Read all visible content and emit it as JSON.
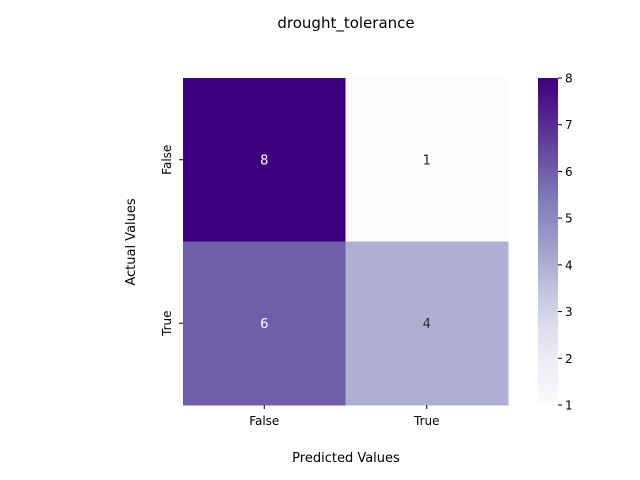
{
  "chart_data": {
    "type": "heatmap",
    "title": "drought_tolerance",
    "xlabel": "Predicted Values",
    "ylabel": "Actual Values",
    "x_categories": [
      "False",
      "True"
    ],
    "y_categories": [
      "False",
      "True"
    ],
    "values": [
      [
        8,
        1
      ],
      [
        6,
        4
      ]
    ],
    "colorbar": {
      "min": 1,
      "max": 8,
      "ticks": [
        1,
        2,
        3,
        4,
        5,
        6,
        7,
        8
      ]
    },
    "colormap": [
      "#fcfbfd",
      "#efedf5",
      "#dadaeb",
      "#bcbddc",
      "#9e9ac8",
      "#807dba",
      "#6a51a3",
      "#54278f",
      "#3f007d"
    ],
    "grid": false,
    "legend": "none"
  }
}
